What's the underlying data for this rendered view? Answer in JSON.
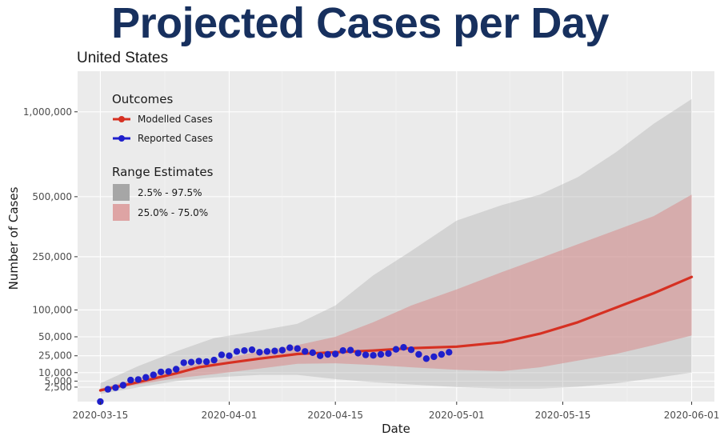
{
  "header": {
    "title": "Projected Cases per Day",
    "subtitle": "United States"
  },
  "colors": {
    "headline": "#17305e",
    "panel": "#ebebeb",
    "modelled": "#d63022",
    "reported": "#1f1fcc",
    "band_outer": "#a6a6a6",
    "band_inner": "#d98c8c"
  },
  "chart_data": {
    "type": "line",
    "xlabel": "Date",
    "ylabel": "Number of Cases",
    "x_ticks": [
      "2020-03-15",
      "2020-04-01",
      "2020-04-15",
      "2020-05-01",
      "2020-05-15",
      "2020-06-01"
    ],
    "y_ticks": [
      {
        "value": 2500,
        "label": "2,500"
      },
      {
        "value": 5000,
        "label": "5,000"
      },
      {
        "value": 10000,
        "label": "10,000"
      },
      {
        "value": 25000,
        "label": "25,000"
      },
      {
        "value": 50000,
        "label": "50,000"
      },
      {
        "value": 100000,
        "label": "100,000"
      },
      {
        "value": 250000,
        "label": "250,000"
      },
      {
        "value": 500000,
        "label": "500,000"
      },
      {
        "value": 1000000,
        "label": "1,000,000"
      }
    ],
    "xlim": [
      "2020-03-12",
      "2020-06-04"
    ],
    "y_scale": "sqrt",
    "ylim": [
      0,
      1300000
    ],
    "grid": true,
    "legend_placement": "top-left",
    "legend": {
      "outcomes_title": "Outcomes",
      "range_title": "Range Estimates",
      "modelled_label": "Modelled Cases",
      "reported_label": "Reported Cases",
      "outer_label": "2.5% - 97.5%",
      "inner_label": "25.0% - 75.0%"
    },
    "series": [
      {
        "name": "Modelled Cases",
        "x": [
          "2020-03-15",
          "2020-03-20",
          "2020-03-25",
          "2020-03-28",
          "2020-04-01",
          "2020-04-05",
          "2020-04-10",
          "2020-04-15",
          "2020-04-20",
          "2020-04-25",
          "2020-05-01",
          "2020-05-07",
          "2020-05-12",
          "2020-05-17",
          "2020-05-22",
          "2020-05-27",
          "2020-06-01"
        ],
        "values": [
          1500,
          4500,
          9500,
          14000,
          18000,
          22000,
          27000,
          29000,
          31000,
          34000,
          36000,
          42000,
          55000,
          75000,
          105000,
          140000,
          185000
        ]
      },
      {
        "name": "Reported Cases",
        "x": [
          "2020-03-15",
          "2020-03-16",
          "2020-03-17",
          "2020-03-18",
          "2020-03-19",
          "2020-03-20",
          "2020-03-21",
          "2020-03-22",
          "2020-03-23",
          "2020-03-24",
          "2020-03-25",
          "2020-03-26",
          "2020-03-27",
          "2020-03-28",
          "2020-03-29",
          "2020-03-30",
          "2020-03-31",
          "2020-04-01",
          "2020-04-02",
          "2020-04-03",
          "2020-04-04",
          "2020-04-05",
          "2020-04-06",
          "2020-04-07",
          "2020-04-08",
          "2020-04-09",
          "2020-04-10",
          "2020-04-11",
          "2020-04-12",
          "2020-04-13",
          "2020-04-14",
          "2020-04-15",
          "2020-04-16",
          "2020-04-17",
          "2020-04-18",
          "2020-04-19",
          "2020-04-20",
          "2020-04-21",
          "2020-04-22",
          "2020-04-23",
          "2020-04-24",
          "2020-04-25",
          "2020-04-26",
          "2020-04-27",
          "2020-04-28",
          "2020-04-29",
          "2020-04-30"
        ],
        "values": [
          0,
          1800,
          2300,
          3200,
          5500,
          5800,
          7000,
          8500,
          10500,
          10800,
          12500,
          18000,
          18500,
          19500,
          19000,
          20500,
          26000,
          25000,
          30000,
          31000,
          32000,
          29000,
          30000,
          30500,
          31500,
          34500,
          33500,
          30000,
          28500,
          25000,
          26500,
          27000,
          31000,
          31500,
          28000,
          26000,
          25500,
          26500,
          27500,
          32500,
          35000,
          32000,
          26500,
          22000,
          24000,
          26500,
          29000
        ]
      }
    ],
    "bands": [
      {
        "name": "2.5% - 97.5%",
        "x": [
          "2020-03-15",
          "2020-03-20",
          "2020-03-25",
          "2020-03-30",
          "2020-04-05",
          "2020-04-10",
          "2020-04-15",
          "2020-04-20",
          "2020-04-25",
          "2020-05-01",
          "2020-05-07",
          "2020-05-12",
          "2020-05-17",
          "2020-05-22",
          "2020-05-27",
          "2020-06-01"
        ],
        "upper": [
          4000,
          15000,
          30000,
          48000,
          60000,
          72000,
          110000,
          190000,
          270000,
          390000,
          460000,
          510000,
          600000,
          740000,
          920000,
          1090000
        ],
        "lower": [
          700,
          2400,
          5000,
          7000,
          8500,
          8500,
          6000,
          4500,
          3500,
          2500,
          2000,
          2000,
          2600,
          4000,
          6500,
          10000
        ]
      },
      {
        "name": "25.0% - 75.0%",
        "x": [
          "2020-03-15",
          "2020-03-20",
          "2020-03-25",
          "2020-03-30",
          "2020-04-05",
          "2020-04-10",
          "2020-04-15",
          "2020-04-20",
          "2020-04-25",
          "2020-05-01",
          "2020-05-07",
          "2020-05-12",
          "2020-05-17",
          "2020-05-22",
          "2020-05-27",
          "2020-06-01"
        ],
        "upper": [
          2000,
          6500,
          13500,
          20000,
          30000,
          38000,
          50000,
          75000,
          110000,
          150000,
          200000,
          245000,
          295000,
          350000,
          410000,
          510000
        ],
        "lower": [
          1200,
          3500,
          6500,
          9000,
          13000,
          17000,
          17500,
          16000,
          14000,
          12000,
          11000,
          14000,
          20000,
          27000,
          38000,
          52000
        ]
      }
    ]
  }
}
